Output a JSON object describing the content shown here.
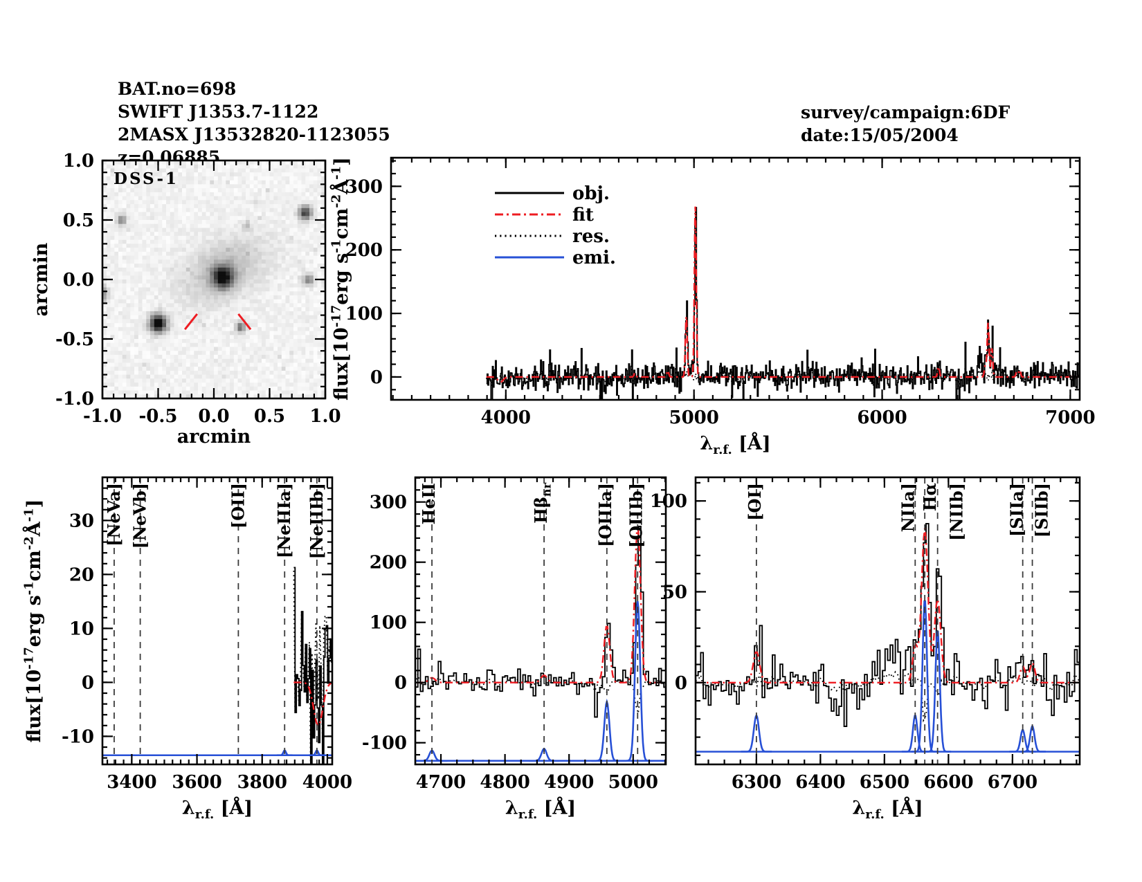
{
  "header": {
    "lines": [
      "BAT.no=698",
      "SWIFT J1353.7-1122",
      "2MASX J13532820-1123055",
      "z=0.06885"
    ]
  },
  "observation": {
    "lines": [
      "survey/campaign:6DF",
      "date:15/05/2004"
    ]
  },
  "colors": {
    "spectrum": "#000000",
    "fit": "#ee1c22",
    "residual": "#000000",
    "emission": "#2750d6",
    "dashed_line": "#3a3a3a",
    "marker": "#ee1c22",
    "frame": "#000000",
    "background": "#ffffff"
  },
  "legend": {
    "items": [
      {
        "label": "obj.",
        "style": "solid",
        "color": "#000000"
      },
      {
        "label": "fit",
        "style": "dashdot",
        "color": "#ee1c22"
      },
      {
        "label": "res.",
        "style": "dotted",
        "color": "#000000"
      },
      {
        "label": "emi.",
        "style": "solid",
        "color": "#2750d6"
      }
    ]
  },
  "chart_data": [
    {
      "id": "dss_image",
      "type": "heatmap",
      "title": "DSS-1",
      "xlabel": "arcmin",
      "ylabel": "arcmin",
      "xlim": [
        -1,
        1
      ],
      "ylim": [
        -1,
        1
      ],
      "xticks": [
        -1.0,
        -0.5,
        0.0,
        0.5,
        1.0
      ],
      "xtick_labels": [
        "-1.0",
        "-0.5",
        "0.0",
        "0.5",
        "1.0"
      ],
      "yticks": [
        -1.0,
        -0.5,
        0.0,
        0.5,
        1.0
      ],
      "ytick_labels": [
        "-1.0",
        "-0.5",
        "0.0",
        "0.5",
        "1.0"
      ],
      "xminor": 0.1,
      "yminor": 0.1,
      "seed": 5,
      "sources": [
        {
          "name": "galaxy-core",
          "x": 0.08,
          "y": 0.02,
          "sigma": 0.065,
          "amp": 0.85
        },
        {
          "name": "galaxy-halo",
          "x": 0.09,
          "y": 0.08,
          "sigma": 0.16,
          "amp": 0.22,
          "elong": 1.7,
          "angle": 25
        },
        {
          "name": "bright-star",
          "x": -0.5,
          "y": -0.37,
          "sigma": 0.052,
          "amp": 1.05
        },
        {
          "name": "source",
          "x": 0.82,
          "y": 0.56,
          "sigma": 0.04,
          "amp": 0.75
        },
        {
          "name": "source",
          "x": -0.83,
          "y": 0.5,
          "sigma": 0.032,
          "amp": 0.4
        },
        {
          "name": "source",
          "x": 0.85,
          "y": 0.0,
          "sigma": 0.034,
          "amp": 0.45
        },
        {
          "name": "source",
          "x": 0.24,
          "y": -0.4,
          "sigma": 0.03,
          "amp": 0.55
        },
        {
          "name": "source",
          "x": -1.02,
          "y": -0.12,
          "sigma": 0.045,
          "amp": 0.5
        },
        {
          "name": "source",
          "x": 0.3,
          "y": 0.45,
          "sigma": 0.025,
          "amp": 0.22
        }
      ],
      "markers": [
        {
          "x1": -0.26,
          "y1": -0.42,
          "x2": -0.15,
          "y2": -0.29
        },
        {
          "x1": 0.33,
          "y1": -0.42,
          "x2": 0.22,
          "y2": -0.29
        }
      ]
    },
    {
      "id": "spectrum_full",
      "type": "line",
      "legend": true,
      "xlabel_segments": [
        {
          "t": "λ"
        },
        {
          "t": "r.f.",
          "sub": true
        },
        {
          "t": " [Å]"
        }
      ],
      "ylabel_segments": [
        {
          "t": "flux[10"
        },
        {
          "t": "-17",
          "sup": true
        },
        {
          "t": "erg s"
        },
        {
          "t": "-1",
          "sup": true
        },
        {
          "t": "cm"
        },
        {
          "t": "-2",
          "sup": true
        },
        {
          "t": "Å"
        },
        {
          "t": "-1",
          "sup": true
        },
        {
          "t": "]"
        }
      ],
      "xlim": [
        3390,
        7050
      ],
      "ylim": [
        -36,
        345
      ],
      "xticks": [
        4000,
        5000,
        6000,
        7000
      ],
      "xtick_labels": [
        "4000",
        "5000",
        "6000",
        "7000"
      ],
      "yticks": [
        0,
        100,
        200,
        300
      ],
      "ytick_labels": [
        "0",
        "100",
        "200",
        "300"
      ],
      "xminor": 100,
      "yminor": 20,
      "data_range": [
        3897,
        7050
      ],
      "noise_sigma": 11,
      "seed": 42,
      "step": 4,
      "res_noise_factor": 0.3,
      "fit_components": [
        {
          "center": 3972,
          "amp": -8,
          "sigma": 14
        },
        {
          "center": 4686,
          "amp": 6,
          "sigma": 5
        },
        {
          "center": 4861,
          "amp": 10,
          "sigma": 5
        },
        {
          "center": 4959,
          "amp": 95,
          "sigma": 5
        },
        {
          "center": 5007,
          "amp": 268,
          "sigma": 5
        },
        {
          "center": 6300,
          "amp": 16,
          "sigma": 5
        },
        {
          "center": 6548,
          "amp": 18,
          "sigma": 5
        },
        {
          "center": 6563,
          "amp": 85,
          "sigma": 5
        },
        {
          "center": 6583,
          "amp": 45,
          "sigma": 5
        },
        {
          "center": 6716,
          "amp": 9,
          "sigma": 5
        },
        {
          "center": 6731,
          "amp": 11,
          "sigma": 5
        }
      ],
      "obj_extra": [
        {
          "center": 6520,
          "amp": 16,
          "sigma": 20
        },
        {
          "center": 6583,
          "amp": 26,
          "sigma": 3
        },
        {
          "center": 6430,
          "amp": -9,
          "sigma": 25
        }
      ]
    },
    {
      "id": "spectrum_zoom_neon",
      "type": "line",
      "xlabel_segments": [
        {
          "t": "λ"
        },
        {
          "t": "r.f.",
          "sub": true
        },
        {
          "t": " [Å]"
        }
      ],
      "ylabel_segments": [
        {
          "t": "flux[10"
        },
        {
          "t": "-17",
          "sup": true
        },
        {
          "t": "erg s"
        },
        {
          "t": "-1",
          "sup": true
        },
        {
          "t": "cm"
        },
        {
          "t": "-2",
          "sup": true
        },
        {
          "t": "Å"
        },
        {
          "t": "-1",
          "sup": true
        },
        {
          "t": "]"
        }
      ],
      "xlim": [
        3310,
        4015
      ],
      "ylim": [
        -15.2,
        38
      ],
      "xticks": [
        3400,
        3600,
        3800,
        4000
      ],
      "xtick_labels": [
        "3400",
        "3600",
        "3800",
        "4000"
      ],
      "yticks": [
        -10,
        0,
        10,
        20,
        30
      ],
      "ytick_labels": [
        "-10",
        "0",
        "10",
        "20",
        "30"
      ],
      "xminor": 25,
      "yminor": 2,
      "data_range": [
        3897,
        4015
      ],
      "noise_sigma": 7.5,
      "seed": 7,
      "step": 4,
      "res_noise_factor": 1.0,
      "fit_components": [
        {
          "center": 3972,
          "amp": -8,
          "sigma": 14
        }
      ],
      "obj_extra": [
        {
          "center": 3990,
          "amp": 5,
          "sigma": 45
        }
      ],
      "emission_baseline": -13.5,
      "emission_components": [
        {
          "center": 3869,
          "amp": 0.9,
          "sigma": 4
        },
        {
          "center": 3968,
          "amp": 0.9,
          "sigma": 4
        }
      ],
      "annotations": [
        {
          "label": "[NeVa]",
          "x": 3346,
          "color": "#ee1c22",
          "dx": 8
        },
        {
          "label": "[NeVb]",
          "x": 3426,
          "color": "#ee1c22",
          "dx": 8
        },
        {
          "label": "[OII]",
          "x": 3727,
          "color": "#ee1c22",
          "dx": 8
        },
        {
          "label": "[NeIIIa]",
          "x": 3869,
          "color": "#ee1c22",
          "dx": 8
        },
        {
          "label": "[NeIIIb]",
          "x": 3968,
          "color": "#ee1c22",
          "dx": 8
        }
      ]
    },
    {
      "id": "spectrum_zoom_hbeta_oiii",
      "type": "line",
      "xlabel_segments": [
        {
          "t": "λ"
        },
        {
          "t": "r.f.",
          "sub": true
        },
        {
          "t": " [Å]"
        }
      ],
      "xlim": [
        4660,
        5051
      ],
      "ylim": [
        -136,
        341
      ],
      "xticks": [
        4700,
        4800,
        4900,
        5000
      ],
      "xtick_labels": [
        "4700",
        "4800",
        "4900",
        "5000"
      ],
      "yticks": [
        -100,
        0,
        100,
        200,
        300
      ],
      "ytick_labels": [
        "-100",
        "0",
        "100",
        "200",
        "300"
      ],
      "xminor": 25,
      "yminor": 20,
      "data_range": [
        4660,
        5051
      ],
      "noise_sigma": 11,
      "seed": 13,
      "step": 4,
      "res_noise_factor": 0.25,
      "fit_components": [
        {
          "center": 4686,
          "amp": 8,
          "sigma": 5
        },
        {
          "center": 4861,
          "amp": 12,
          "sigma": 5
        },
        {
          "center": 4959,
          "amp": 95,
          "sigma": 4.5
        },
        {
          "center": 5007,
          "amp": 262,
          "sigma": 4.5
        }
      ],
      "res_extra": [
        {
          "center": 5007,
          "amp": -55,
          "sigma": 3
        },
        {
          "center": 4959,
          "amp": -20,
          "sigma": 3
        }
      ],
      "emission_baseline": -130,
      "emission_components": [
        {
          "center": 4686,
          "amp": 17,
          "sigma": 4
        },
        {
          "center": 4861,
          "amp": 20,
          "sigma": 4
        },
        {
          "center": 4959,
          "amp": 98,
          "sigma": 4
        },
        {
          "center": 5007,
          "amp": 265,
          "sigma": 4
        }
      ],
      "annotations": [
        {
          "label": "HeII",
          "x": 4686,
          "color": "#ee1c22",
          "dx": 4
        },
        {
          "label_segments": [
            {
              "t": "Hβ"
            },
            {
              "t": "nr",
              "sub": true
            }
          ],
          "x": 4861,
          "color": "#ee1c22",
          "dx": 4
        },
        {
          "label": "[OIIIa]",
          "x": 4959,
          "color": "#000000",
          "dx": 6
        },
        {
          "label": "[OIIIb]",
          "x": 5007,
          "color": "#000000",
          "dx": 6
        }
      ]
    },
    {
      "id": "spectrum_zoom_halpha",
      "type": "line",
      "xlabel_segments": [
        {
          "t": "λ"
        },
        {
          "t": "r.f.",
          "sub": true
        },
        {
          "t": " [Å]"
        }
      ],
      "xlim": [
        6205,
        6805
      ],
      "ylim": [
        -45,
        113
      ],
      "xticks": [
        6300,
        6400,
        6500,
        6600,
        6700
      ],
      "xtick_labels": [
        "6300",
        "6400",
        "6500",
        "6600",
        "6700"
      ],
      "yticks": [
        0,
        50,
        100
      ],
      "ytick_labels": [
        "0",
        "50",
        "100"
      ],
      "xminor": 25,
      "yminor": 10,
      "data_range": [
        6205,
        6805
      ],
      "noise_sigma": 7,
      "seed": 99,
      "step": 4,
      "res_noise_factor": 0.25,
      "fit_components": [
        {
          "center": 6300,
          "amp": 17,
          "sigma": 5
        },
        {
          "center": 6548,
          "amp": 20,
          "sigma": 4
        },
        {
          "center": 6563,
          "amp": 85,
          "sigma": 5
        },
        {
          "center": 6583,
          "amp": 46,
          "sigma": 5
        },
        {
          "center": 6716,
          "amp": 9,
          "sigma": 4
        },
        {
          "center": 6731,
          "amp": 11,
          "sigma": 4
        }
      ],
      "obj_extra": [
        {
          "center": 6515,
          "amp": 18,
          "sigma": 18
        },
        {
          "center": 6583,
          "amp": 25,
          "sigma": 3
        },
        {
          "center": 6430,
          "amp": -9,
          "sigma": 25
        }
      ],
      "res_extra": [
        {
          "center": 6563,
          "amp": -28,
          "sigma": 2.5
        },
        {
          "center": 6583,
          "amp": -14,
          "sigma": 2.5
        }
      ],
      "emission_baseline": -38,
      "emission_components": [
        {
          "center": 6300,
          "amp": 20,
          "sigma": 4
        },
        {
          "center": 6548,
          "amp": 20,
          "sigma": 3.5
        },
        {
          "center": 6563,
          "amp": 84,
          "sigma": 3.5
        },
        {
          "center": 6583,
          "amp": 67,
          "sigma": 3.5
        },
        {
          "center": 6716,
          "amp": 12,
          "sigma": 3.5
        },
        {
          "center": 6731,
          "amp": 14,
          "sigma": 3.5
        }
      ],
      "annotations": [
        {
          "label": "[OI]",
          "x": 6300,
          "color": "#ee1c22",
          "dx": 6
        },
        {
          "label": "NIIa]",
          "x": 6548,
          "color": "#000000",
          "dx": -2
        },
        {
          "label": "Hα",
          "x": 6563,
          "color": "#000000",
          "dx": 16
        },
        {
          "label": "[NIIb]",
          "x": 6583,
          "color": "#000000",
          "dx": 36
        },
        {
          "label": "[SIIa]",
          "x": 6716,
          "color": "#ee1c22",
          "dx": 0
        },
        {
          "label": "[SIIb]",
          "x": 6731,
          "color": "#ee1c22",
          "dx": 22
        }
      ]
    }
  ]
}
